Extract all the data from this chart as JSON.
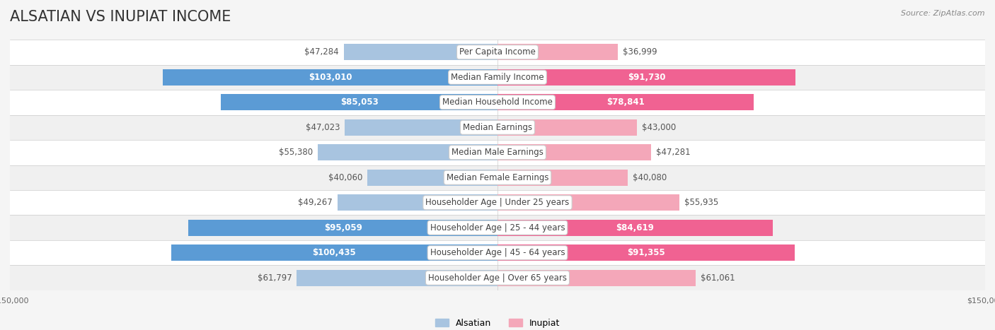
{
  "title": "ALSATIAN VS INUPIAT INCOME",
  "source": "Source: ZipAtlas.com",
  "categories": [
    "Per Capita Income",
    "Median Family Income",
    "Median Household Income",
    "Median Earnings",
    "Median Male Earnings",
    "Median Female Earnings",
    "Householder Age | Under 25 years",
    "Householder Age | 25 - 44 years",
    "Householder Age | 45 - 64 years",
    "Householder Age | Over 65 years"
  ],
  "alsatian_values": [
    47284,
    103010,
    85053,
    47023,
    55380,
    40060,
    49267,
    95059,
    100435,
    61797
  ],
  "inupiat_values": [
    36999,
    91730,
    78841,
    43000,
    47281,
    40080,
    55935,
    84619,
    91355,
    61061
  ],
  "max_value": 150000,
  "alsatian_color_light": "#a8c4e0",
  "alsatian_color_dark": "#5b9bd5",
  "inupiat_color_light": "#f4a7b9",
  "inupiat_color_dark": "#f06292",
  "bg_color": "#f5f5f5",
  "row_bg": "#efefef",
  "label_bg": "#ffffff",
  "title_fontsize": 15,
  "label_fontsize": 8.5,
  "value_fontsize": 8.5,
  "legend_fontsize": 9,
  "axis_fontsize": 8
}
